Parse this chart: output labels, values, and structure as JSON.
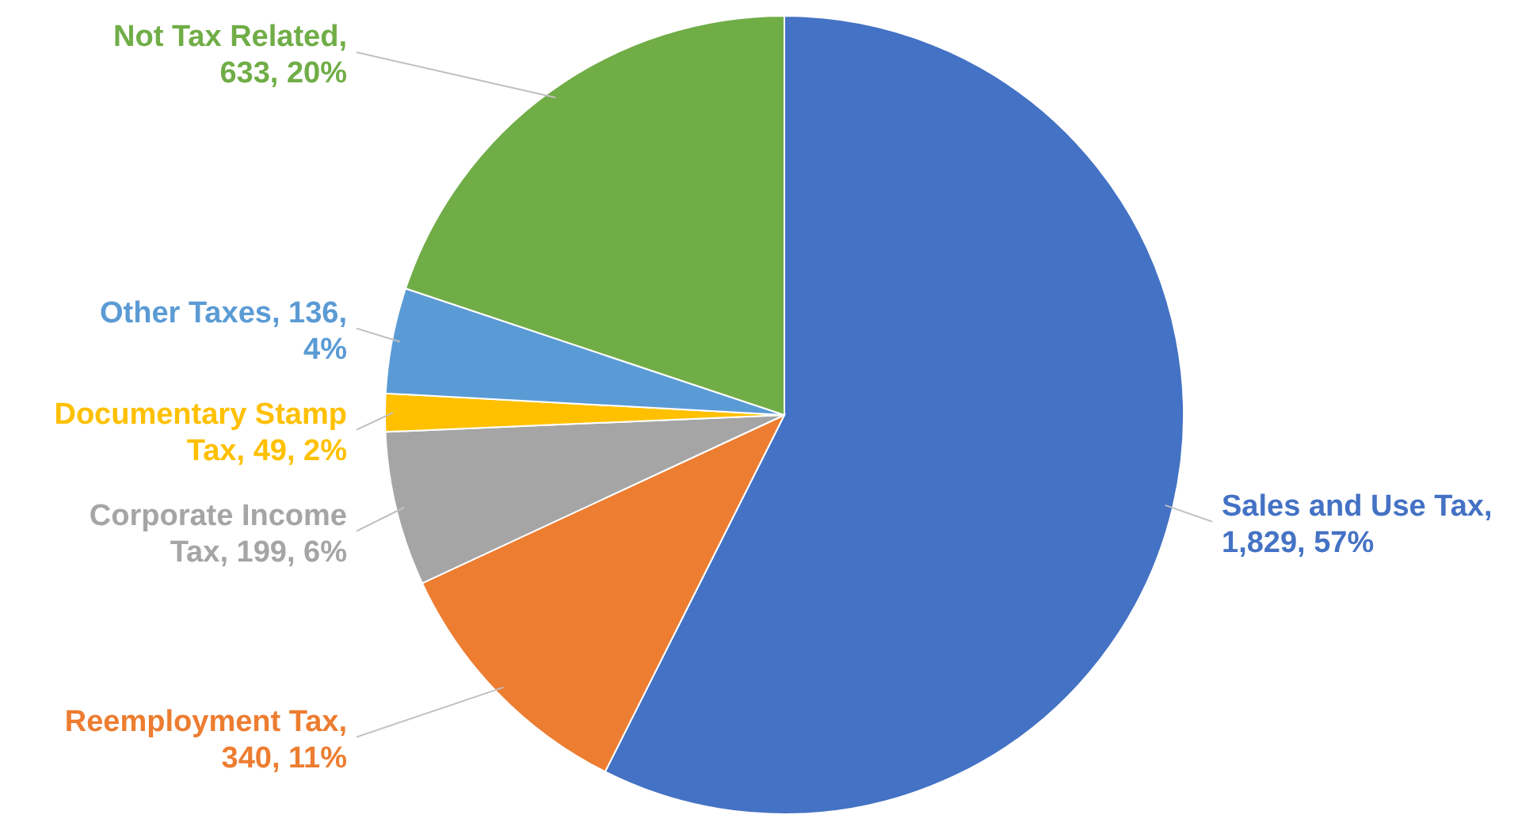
{
  "chart_data": {
    "type": "pie",
    "categories": [
      "Sales and Use Tax",
      "Reemployment Tax",
      "Corporate Income Tax",
      "Documentary Stamp Tax",
      "Other Taxes",
      "Not Tax Related"
    ],
    "values": [
      1829,
      340,
      199,
      49,
      136,
      633
    ],
    "colors": [
      "#4472c4",
      "#ed7d31",
      "#a5a5a5",
      "#ffc000",
      "#5b9bd5",
      "#70ad47"
    ],
    "value_labels": [
      ", 1,829, 57%",
      ", 340, 11%",
      ", 199, 6%",
      ", 49, 2%",
      ", 136, 4%",
      ", 633, 20%"
    ]
  }
}
